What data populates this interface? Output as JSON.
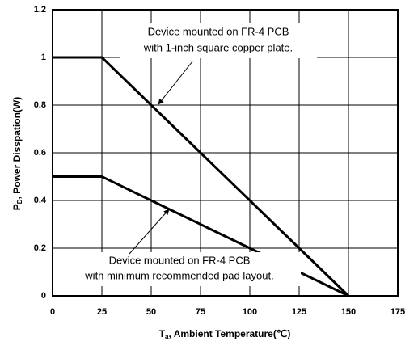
{
  "chart_data": {
    "type": "line",
    "y_label": {
      "main": "P",
      "sub": "D",
      "rest": ", Power Disspation(W)"
    },
    "x_label": {
      "main": "T",
      "sub": "a",
      "rest": ", Ambient Temperature(℃)"
    },
    "x": [
      0,
      25,
      150
    ],
    "series": [
      {
        "color": "#000000",
        "values": [
          1,
          1,
          0
        ]
      },
      {
        "color": "#000000",
        "values": [
          0.5,
          0.5,
          0
        ]
      }
    ],
    "xlim": [
      0,
      175
    ],
    "xticks": [
      0,
      25,
      50,
      75,
      100,
      125,
      150,
      175
    ],
    "ylim": [
      0,
      1.2
    ],
    "yticks": [
      0,
      0.2,
      0.4,
      0.6,
      0.8,
      1,
      1.2
    ],
    "grid": true,
    "annotations": [
      {
        "lines": [
          "Device mounted on FR-4 PCB",
          "with 1-inch square copper plate."
        ]
      },
      {
        "lines": [
          "Device mounted on FR-4 PCB",
          "with minimum recommended pad layout."
        ]
      }
    ]
  }
}
